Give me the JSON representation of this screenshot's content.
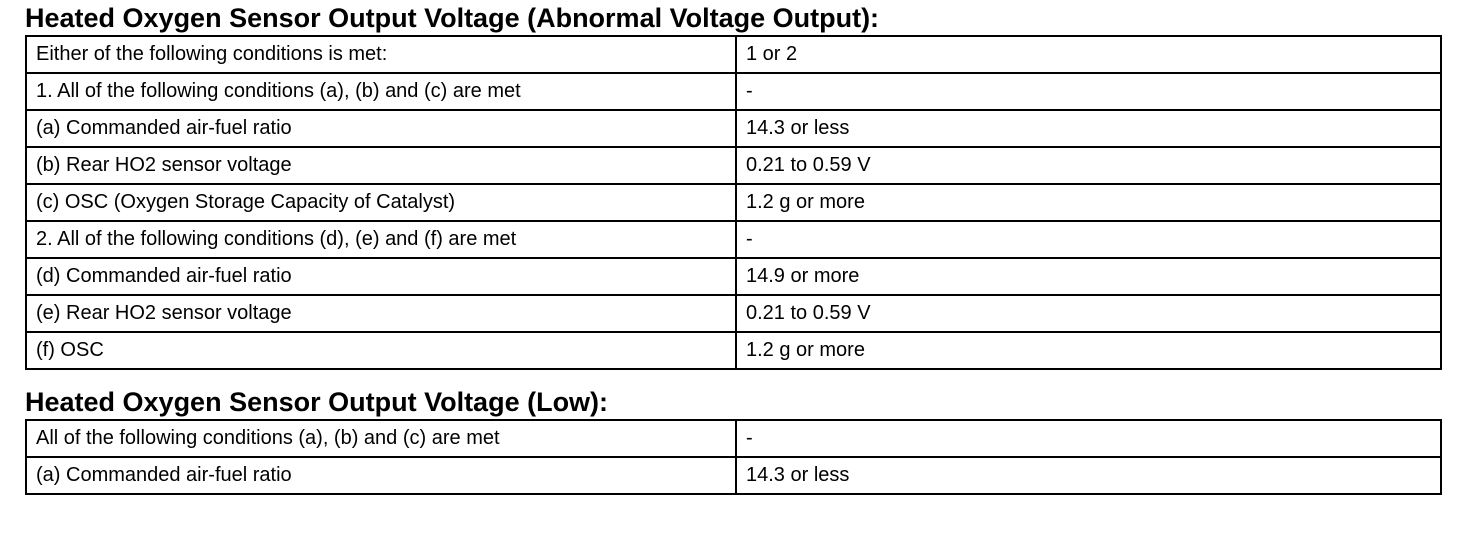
{
  "sections": [
    {
      "title": "Heated Oxygen Sensor Output Voltage (Abnormal Voltage Output):",
      "rows": [
        [
          "Either of the following conditions is met:",
          "1 or 2"
        ],
        [
          "1. All of the following conditions (a), (b) and (c) are met",
          "-"
        ],
        [
          "(a) Commanded air-fuel ratio",
          "14.3 or less"
        ],
        [
          "(b) Rear HO2 sensor voltage",
          "0.21 to 0.59 V"
        ],
        [
          "(c) OSC (Oxygen Storage Capacity of Catalyst)",
          "1.2 g or more"
        ],
        [
          "2. All of the following conditions (d), (e) and (f) are met",
          "-"
        ],
        [
          "(d) Commanded air-fuel ratio",
          "14.9 or more"
        ],
        [
          "(e) Rear HO2 sensor voltage",
          "0.21 to 0.59 V"
        ],
        [
          "(f) OSC",
          "1.2 g or more"
        ]
      ]
    },
    {
      "title": "Heated Oxygen Sensor Output Voltage (Low):",
      "rows": [
        [
          "All of the following conditions (a), (b) and (c) are met",
          "-"
        ],
        [
          "(a) Commanded air-fuel ratio",
          "14.3 or less"
        ]
      ]
    }
  ]
}
